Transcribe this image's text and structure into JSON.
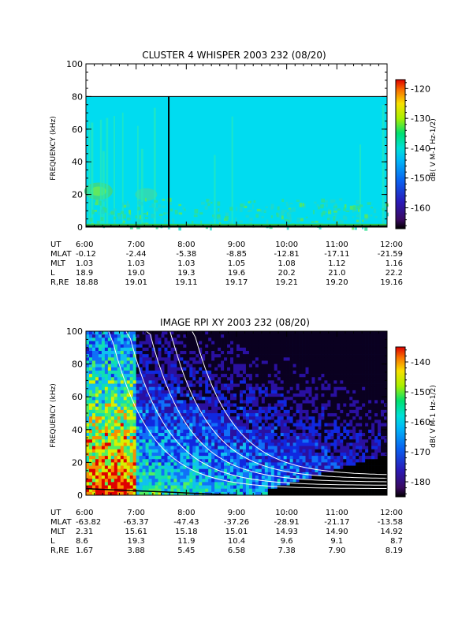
{
  "colors": {
    "background": "#00dcf0",
    "marker": "#000000",
    "curves": "#ffffff"
  },
  "chart_data": [
    {
      "type": "heatmap",
      "title": "CLUSTER 4 WHISPER 2003 232 (08/20)",
      "ylabel": "FREQUENCY (kHz)",
      "ylim": [
        0,
        100
      ],
      "yticks": [
        "0",
        "20",
        "40",
        "60",
        "80",
        "100"
      ],
      "ytick_values": [
        0,
        20,
        40,
        60,
        80,
        100
      ],
      "xticks": [
        "6:00",
        "7:00",
        "8:00",
        "9:00",
        "10:00",
        "11:00",
        "12:00"
      ],
      "xlim_hours": [
        6,
        12
      ],
      "data_top_kHz": 80,
      "marker_time_hours": 7.65,
      "colorbar": {
        "label": "dB( V M-1 Hz-1/2)",
        "range": [
          -167,
          -117
        ],
        "ticks": [
          -120,
          -130,
          -140,
          -150,
          -160
        ]
      },
      "ephemeris": [
        {
          "label": "UT",
          "values": [
            "6:00",
            "7:00",
            "8:00",
            "9:00",
            "10:00",
            "11:00",
            "12:00"
          ]
        },
        {
          "label": "MLAT",
          "values": [
            "-0.12",
            "-2.44",
            "-5.38",
            "-8.85",
            "-12.81",
            "-17.11",
            "-21.59"
          ]
        },
        {
          "label": "MLT",
          "values": [
            "1.03",
            "1.03",
            "1.03",
            "1.05",
            "1.08",
            "1.12",
            "1.16"
          ]
        },
        {
          "label": "L",
          "values": [
            "18.9",
            "19.0",
            "19.3",
            "19.6",
            "20.2",
            "21.0",
            "22.2"
          ]
        },
        {
          "label": "R,RE",
          "values": [
            "18.88",
            "19.01",
            "19.11",
            "19.17",
            "19.21",
            "19.20",
            "19.16"
          ]
        }
      ]
    },
    {
      "type": "heatmap",
      "title": "IMAGE RPI XY 2003 232 (08/20)",
      "ylabel": "FREQUENCY (kHz)",
      "ylim": [
        0,
        100
      ],
      "yticks": [
        "0",
        "20",
        "40",
        "60",
        "80",
        "100"
      ],
      "ytick_values": [
        0,
        20,
        40,
        60,
        80,
        100
      ],
      "xticks": [
        "6:00",
        "7:00",
        "8:00",
        "9:00",
        "10:00",
        "11:00",
        "12:00"
      ],
      "xlim_hours": [
        6,
        12
      ],
      "colorbar": {
        "label": "dB( V M-1 Hz-1/2)",
        "range": [
          -185,
          -135
        ],
        "ticks": [
          -140,
          -150,
          -160,
          -170,
          -180
        ]
      },
      "ephemeris": [
        {
          "label": "UT",
          "values": [
            "6:00",
            "7:00",
            "8:00",
            "9:00",
            "10:00",
            "11:00",
            "12:00"
          ]
        },
        {
          "label": "MLAT",
          "values": [
            "-63.82",
            "-63.37",
            "-47.43",
            "-37.26",
            "-28.91",
            "-21.17",
            "-13.58"
          ]
        },
        {
          "label": "MLT",
          "values": [
            "2.31",
            "15.61",
            "15.18",
            "15.01",
            "14.93",
            "14.90",
            "14.92"
          ]
        },
        {
          "label": "L",
          "values": [
            "8.6",
            "19.3",
            "11.9",
            "10.4",
            "9.6",
            "9.1",
            "8.7"
          ]
        },
        {
          "label": "R,RE",
          "values": [
            "1.67",
            "3.88",
            "5.45",
            "6.58",
            "7.38",
            "7.90",
            "8.19"
          ]
        }
      ]
    }
  ]
}
